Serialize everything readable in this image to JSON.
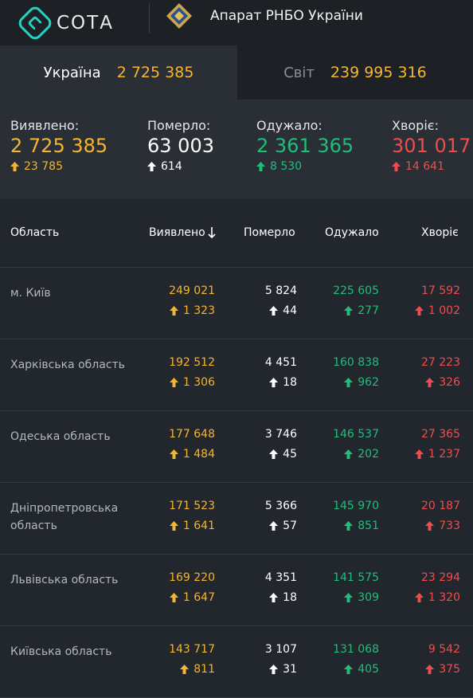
{
  "header": {
    "logo_text": "СОТА",
    "org_name": "Апарат РНБО України"
  },
  "tabs": {
    "ukraine_label": "Україна",
    "ukraine_value": "2 725 385",
    "world_label": "Світ",
    "world_value": "239 995 316"
  },
  "summary": {
    "detected": {
      "label": "Виявлено:",
      "value": "2 725 385",
      "delta": "23 785"
    },
    "died": {
      "label": "Померло:",
      "value": "63 003",
      "delta": "614"
    },
    "recovered": {
      "label": "Одужало:",
      "value": "2 361 365",
      "delta": "8 530"
    },
    "sick": {
      "label": "Хворіє:",
      "value": "301 017",
      "delta": "14 641"
    }
  },
  "table": {
    "headers": {
      "region": "Область",
      "detected": "Виявлено",
      "died": "Померло",
      "recovered": "Одужало",
      "sick": "Хворіє"
    },
    "rows": [
      {
        "region": "м. Київ",
        "detected": "249 021",
        "detected_d": "1 323",
        "died": "5 824",
        "died_d": "44",
        "recovered": "225 605",
        "recovered_d": "277",
        "sick": "17 592",
        "sick_d": "1 002"
      },
      {
        "region": "Харківська область",
        "detected": "192 512",
        "detected_d": "1 306",
        "died": "4 451",
        "died_d": "18",
        "recovered": "160 838",
        "recovered_d": "962",
        "sick": "27 223",
        "sick_d": "326"
      },
      {
        "region": "Одеська область",
        "detected": "177 648",
        "detected_d": "1 484",
        "died": "3 746",
        "died_d": "45",
        "recovered": "146 537",
        "recovered_d": "202",
        "sick": "27 365",
        "sick_d": "1 237"
      },
      {
        "region": "Дніпропетровська область",
        "detected": "171 523",
        "detected_d": "1 641",
        "died": "5 366",
        "died_d": "57",
        "recovered": "145 970",
        "recovered_d": "851",
        "sick": "20 187",
        "sick_d": "733"
      },
      {
        "region": "Львівська область",
        "detected": "169 220",
        "detected_d": "1 647",
        "died": "4 351",
        "died_d": "18",
        "recovered": "141 575",
        "recovered_d": "309",
        "sick": "23 294",
        "sick_d": "1 320"
      },
      {
        "region": "Київська область",
        "detected": "143 717",
        "detected_d": "811",
        "died": "3 107",
        "died_d": "31",
        "recovered": "131 068",
        "recovered_d": "405",
        "sick": "9 542",
        "sick_d": "375"
      }
    ]
  },
  "colors": {
    "yellow": "#f5b52e",
    "green": "#1fbf7a",
    "red": "#ef4d4d",
    "teal_logo": "#21d3c0"
  },
  "icons": {
    "up_arrow": "arrow-up-icon",
    "sort": "arrow-down-icon"
  }
}
